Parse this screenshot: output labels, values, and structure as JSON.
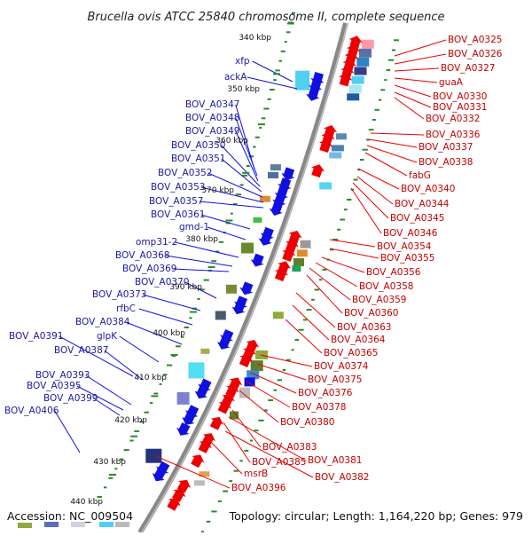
{
  "title": "Brucella ovis ATCC 25840 chromosome II, complete sequence",
  "footer": {
    "accession": "Accession: NC_009504",
    "summary": "Topology: circular; Length: 1,164,220 bp; Genes: 979"
  },
  "scale_labels": [
    "340 kbp",
    "350 kbp",
    "360 kbp",
    "370 kbp",
    "380 kbp",
    "390 kbp",
    "400 kbp",
    "410 kbp",
    "420 kbp",
    "430 kbp",
    "440 kbp"
  ],
  "left_labels": [
    "xfp",
    "ackA",
    "BOV_A0347",
    "BOV_A0348",
    "BOV_A0349",
    "BOV_A0350",
    "BOV_A0351",
    "BOV_A0352",
    "BOV_A0353",
    "BOV_A0357",
    "BOV_A0361",
    "gmd-1",
    "omp31-2",
    "BOV_A0368",
    "BOV_A0369",
    "BOV_A0370",
    "BOV_A0373",
    "rfbC",
    "BOV_A0384",
    "glpK",
    "BOV_A0391",
    "BOV_A0387",
    "BOV_A0393",
    "BOV_A0395",
    "BOV_A0399",
    "BOV_A0406"
  ],
  "right_labels": [
    "BOV_A0325",
    "BOV_A0326",
    "BOV_A0327",
    "guaA",
    "BOV_A0330",
    "BOV_A0331",
    "BOV_A0332",
    "BOV_A0336",
    "BOV_A0337",
    "BOV_A0338",
    "fabG",
    "BOV_A0340",
    "BOV_A0344",
    "BOV_A0345",
    "BOV_A0346",
    "BOV_A0354",
    "BOV_A0355",
    "BOV_A0356",
    "BOV_A0358",
    "BOV_A0359",
    "BOV_A0360",
    "BOV_A0363",
    "BOV_A0364",
    "BOV_A0365",
    "BOV_A0374",
    "BOV_A0375",
    "BOV_A0376",
    "BOV_A0378",
    "BOV_A0380",
    "BOV_A0383",
    "BOV_A0381",
    "BOV_A0385",
    "BOV_A0382",
    "msrB",
    "BOV_A0396"
  ],
  "colors": {
    "forward": "#1010e0",
    "reverse": "#ee0000",
    "left_text": "#1a1aa0",
    "right_text": "#c40000",
    "backbone": "#888888",
    "gc_dots": "#2a8a2a"
  }
}
